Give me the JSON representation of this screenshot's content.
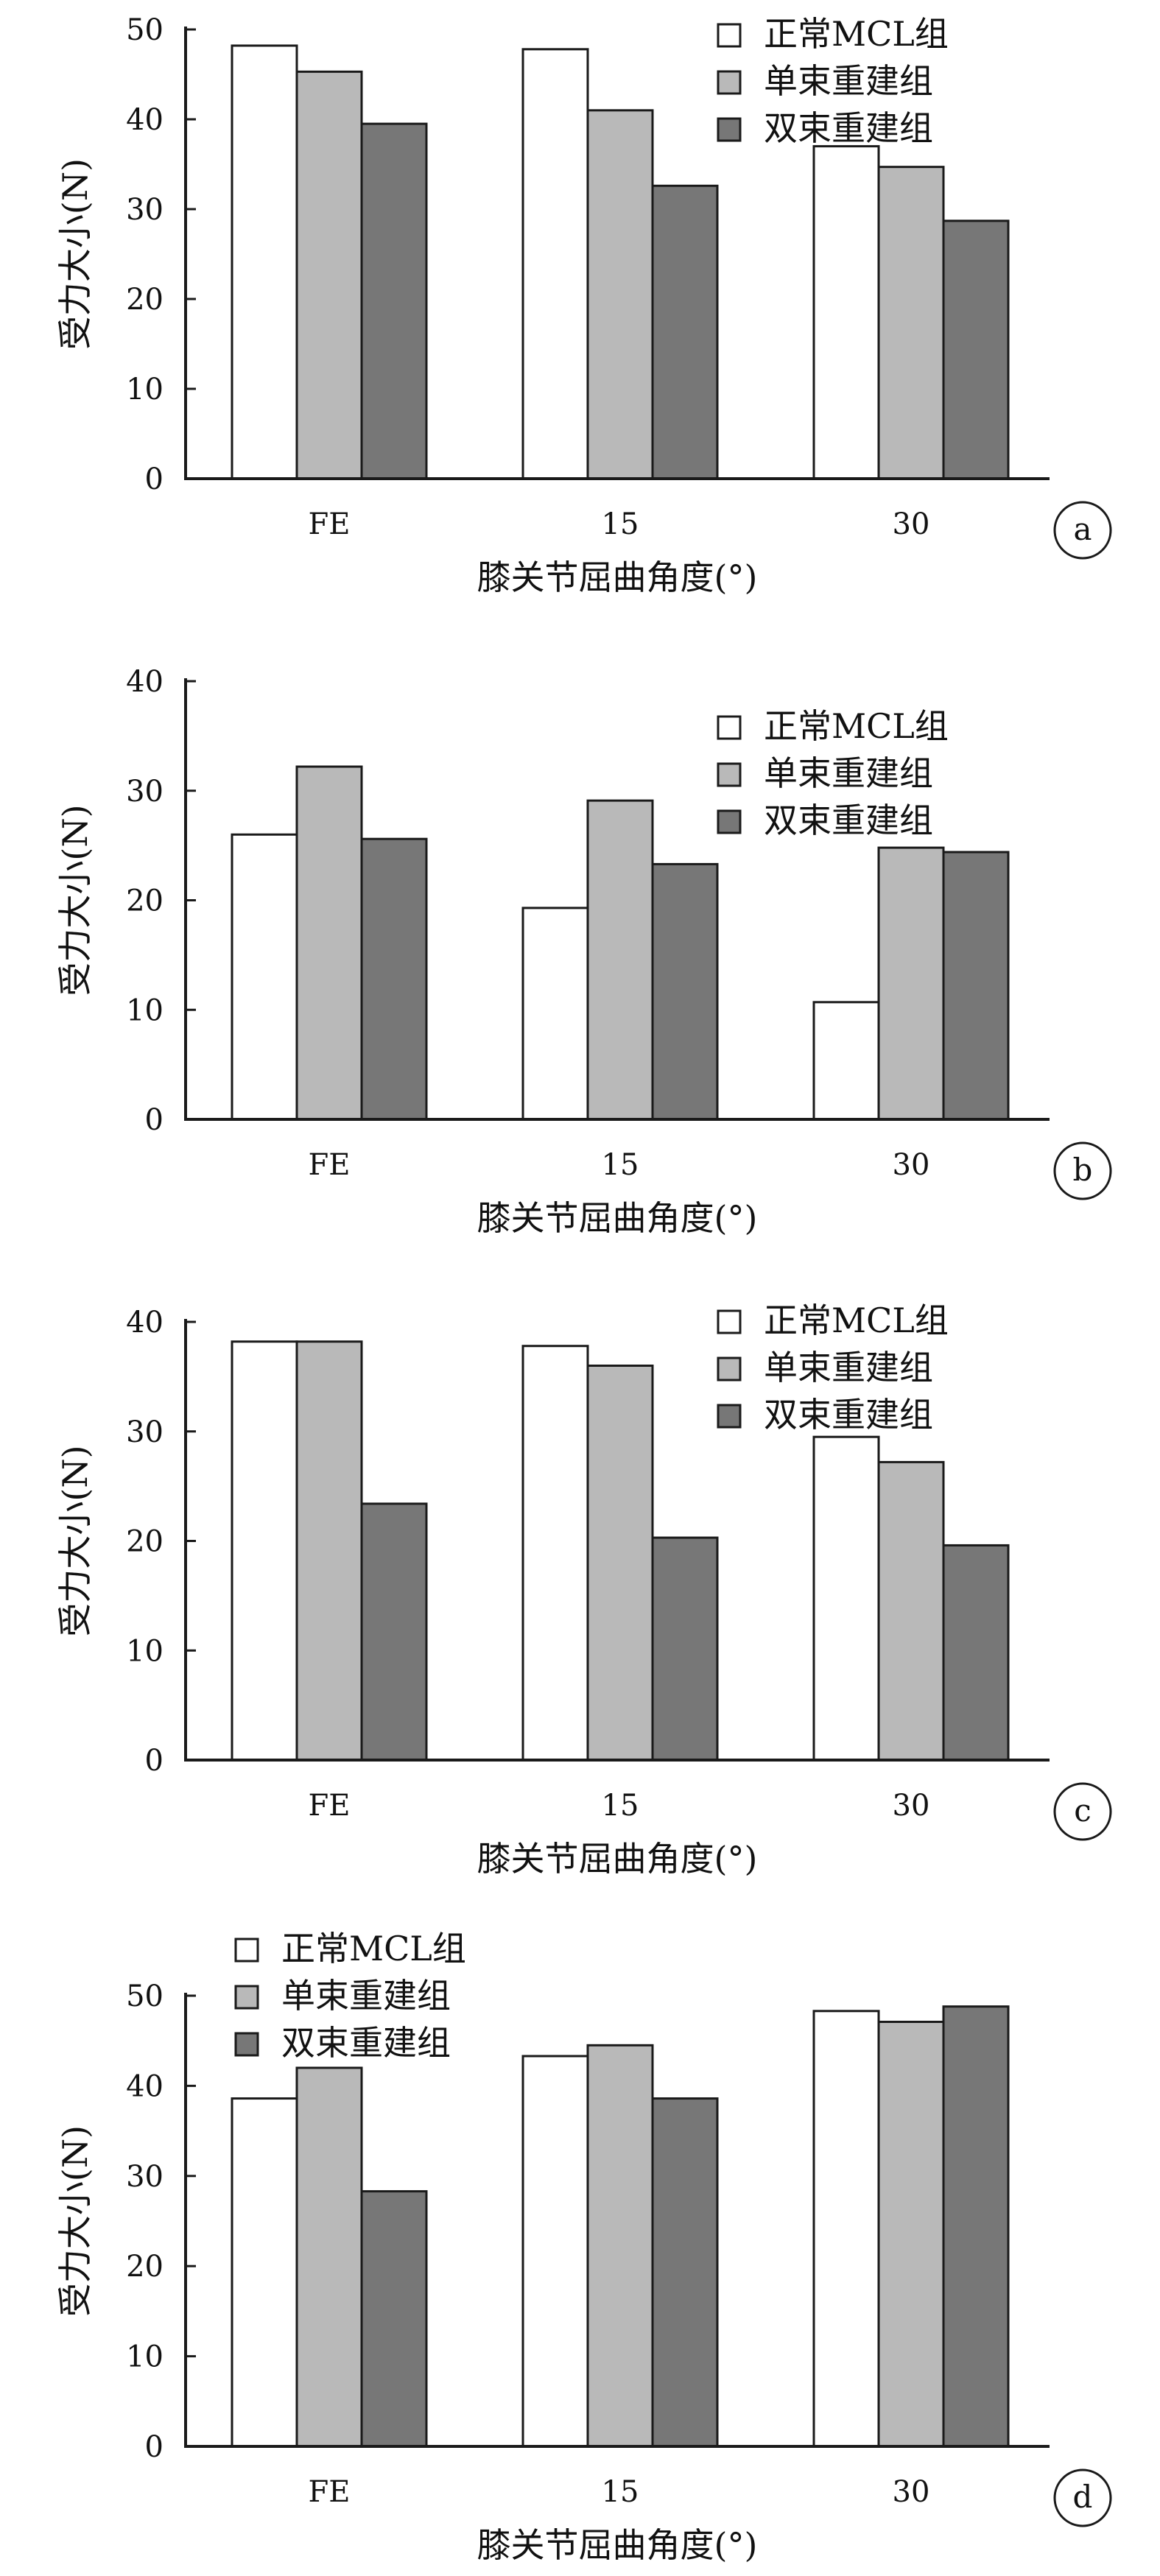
{
  "colors": {
    "normal": "#ffffff",
    "single": "#b9b9b9",
    "double": "#777777",
    "axis": "#1a1a1a"
  },
  "chart_data": [
    {
      "type": "bar",
      "panel_label": "a",
      "categories": [
        "FE",
        "15",
        "30"
      ],
      "xlabel": "膝关节屈曲角度(°)",
      "ylabel": "受力大小(N)",
      "ylim": [
        0,
        50
      ],
      "yticks": [
        0,
        10,
        20,
        30,
        40,
        50
      ],
      "legend_position": "top-right",
      "series": [
        {
          "name": "正常MCL组",
          "color_key": "normal",
          "values": [
            48.2,
            47.8,
            37.0
          ]
        },
        {
          "name": "单束重建组",
          "color_key": "single",
          "values": [
            45.3,
            41.0,
            34.7
          ]
        },
        {
          "name": "双束重建组",
          "color_key": "double",
          "values": [
            39.5,
            32.6,
            28.7
          ]
        }
      ]
    },
    {
      "type": "bar",
      "panel_label": "b",
      "categories": [
        "FE",
        "15",
        "30"
      ],
      "xlabel": "膝关节屈曲角度(°)",
      "ylabel": "受力大小(N)",
      "ylim": [
        0,
        40
      ],
      "yticks": [
        0,
        10,
        20,
        30,
        40
      ],
      "legend_position": "top-right",
      "series": [
        {
          "name": "正常MCL组",
          "color_key": "normal",
          "values": [
            26.0,
            19.3,
            10.7
          ]
        },
        {
          "name": "单束重建组",
          "color_key": "single",
          "values": [
            32.2,
            29.1,
            24.8
          ]
        },
        {
          "name": "双束重建组",
          "color_key": "double",
          "values": [
            25.6,
            23.3,
            24.4
          ]
        }
      ]
    },
    {
      "type": "bar",
      "panel_label": "c",
      "categories": [
        "FE",
        "15",
        "30"
      ],
      "xlabel": "膝关节屈曲角度(°)",
      "ylabel": "受力大小(N)",
      "ylim": [
        0,
        40
      ],
      "yticks": [
        0,
        10,
        20,
        30,
        40
      ],
      "legend_position": "top-right",
      "series": [
        {
          "name": "正常MCL组",
          "color_key": "normal",
          "values": [
            38.2,
            37.8,
            29.5
          ]
        },
        {
          "name": "单束重建组",
          "color_key": "single",
          "values": [
            38.2,
            36.0,
            27.2
          ]
        },
        {
          "name": "双束重建组",
          "color_key": "double",
          "values": [
            23.4,
            20.3,
            19.6
          ]
        }
      ]
    },
    {
      "type": "bar",
      "panel_label": "d",
      "categories": [
        "FE",
        "15",
        "30"
      ],
      "xlabel": "膝关节屈曲角度(°)",
      "ylabel": "受力大小(N)",
      "ylim": [
        0,
        50
      ],
      "yticks": [
        0,
        10,
        20,
        30,
        40,
        50
      ],
      "legend_position": "top-left",
      "series": [
        {
          "name": "正常MCL组",
          "color_key": "normal",
          "values": [
            38.6,
            43.3,
            48.3
          ]
        },
        {
          "name": "单束重建组",
          "color_key": "single",
          "values": [
            42.0,
            44.5,
            47.1
          ]
        },
        {
          "name": "双束重建组",
          "color_key": "double",
          "values": [
            28.3,
            38.6,
            48.8
          ]
        }
      ]
    }
  ]
}
